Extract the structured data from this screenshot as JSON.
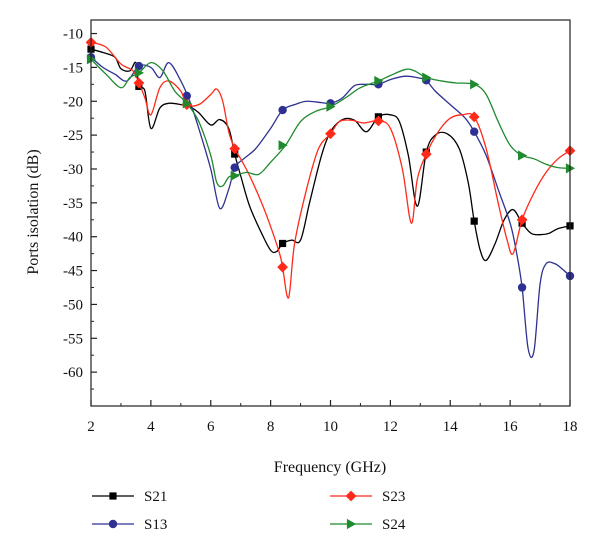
{
  "chart_data": {
    "type": "line",
    "title": "",
    "xlabel": "Frequency (GHz)",
    "ylabel": "Ports isolation (dB)",
    "xlim": [
      2,
      18
    ],
    "ylim": [
      -65,
      -8
    ],
    "xticks": [
      2,
      4,
      6,
      8,
      10,
      12,
      14,
      16,
      18
    ],
    "yticks": [
      -10,
      -15,
      -20,
      -25,
      -30,
      -35,
      -40,
      -45,
      -50,
      -55,
      -60
    ],
    "grid": false,
    "legend_position": "bottom",
    "series": [
      {
        "name": "S21",
        "color": "#000000",
        "marker": "square",
        "points": [
          [
            2,
            -12.3
          ],
          [
            2.4,
            -12.8
          ],
          [
            2.8,
            -13.5
          ],
          [
            3.0,
            -15.2
          ],
          [
            3.3,
            -15.5
          ],
          [
            3.5,
            -14.3
          ],
          [
            3.6,
            -17.8
          ],
          [
            3.8,
            -18.5
          ],
          [
            4.0,
            -24.0
          ],
          [
            4.3,
            -21.0
          ],
          [
            4.6,
            -20.3
          ],
          [
            5.0,
            -20.5
          ],
          [
            5.3,
            -20.8
          ],
          [
            5.6,
            -21.7
          ],
          [
            6.0,
            -23.5
          ],
          [
            6.3,
            -22.7
          ],
          [
            6.6,
            -24.0
          ],
          [
            6.8,
            -27.8
          ],
          [
            7.0,
            -31.0
          ],
          [
            7.3,
            -35.5
          ],
          [
            7.7,
            -39.5
          ],
          [
            8.0,
            -42.0
          ],
          [
            8.2,
            -42.2
          ],
          [
            8.4,
            -41.0
          ],
          [
            8.7,
            -40.5
          ],
          [
            9.0,
            -40.5
          ],
          [
            9.3,
            -35.0
          ],
          [
            9.7,
            -28.0
          ],
          [
            10.0,
            -24.5
          ],
          [
            10.4,
            -22.7
          ],
          [
            10.8,
            -22.8
          ],
          [
            11.2,
            -24.5
          ],
          [
            11.6,
            -22.3
          ],
          [
            12.0,
            -22.0
          ],
          [
            12.3,
            -23.0
          ],
          [
            12.6,
            -28.0
          ],
          [
            12.9,
            -35.5
          ],
          [
            13.2,
            -27.5
          ],
          [
            13.5,
            -25.0
          ],
          [
            13.9,
            -24.8
          ],
          [
            14.3,
            -27.0
          ],
          [
            14.6,
            -32.0
          ],
          [
            14.8,
            -37.7
          ],
          [
            15.0,
            -42.0
          ],
          [
            15.2,
            -43.5
          ],
          [
            15.5,
            -41.0
          ],
          [
            15.8,
            -37.5
          ],
          [
            16.1,
            -36.0
          ],
          [
            16.4,
            -38.0
          ],
          [
            16.7,
            -39.5
          ],
          [
            17.0,
            -39.7
          ],
          [
            17.3,
            -39.5
          ],
          [
            17.6,
            -38.8
          ],
          [
            18.0,
            -38.4
          ]
        ],
        "markers": [
          [
            2,
            -12.3
          ],
          [
            3.6,
            -17.8
          ],
          [
            6.8,
            -27.8
          ],
          [
            8.4,
            -41.0
          ],
          [
            11.6,
            -22.3
          ],
          [
            13.2,
            -27.5
          ],
          [
            14.8,
            -37.7
          ],
          [
            16.4,
            -38.0
          ],
          [
            18.0,
            -38.4
          ]
        ]
      },
      {
        "name": "S13",
        "color": "#2e3192",
        "marker": "circle",
        "points": [
          [
            2,
            -13.5
          ],
          [
            2.4,
            -15.0
          ],
          [
            2.8,
            -16.0
          ],
          [
            3.2,
            -17.0
          ],
          [
            3.6,
            -14.8
          ],
          [
            4.0,
            -15.0
          ],
          [
            4.3,
            -16.5
          ],
          [
            4.6,
            -14.3
          ],
          [
            5.0,
            -17.0
          ],
          [
            5.3,
            -20.0
          ],
          [
            5.6,
            -24.0
          ],
          [
            6.0,
            -30.0
          ],
          [
            6.3,
            -35.8
          ],
          [
            6.6,
            -33.0
          ],
          [
            6.8,
            -29.8
          ],
          [
            7.1,
            -28.5
          ],
          [
            7.5,
            -27.0
          ],
          [
            8.0,
            -24.0
          ],
          [
            8.4,
            -21.3
          ],
          [
            8.8,
            -20.5
          ],
          [
            9.2,
            -20.0
          ],
          [
            9.7,
            -20.2
          ],
          [
            10.0,
            -20.3
          ],
          [
            10.4,
            -19.5
          ],
          [
            10.8,
            -17.7
          ],
          [
            11.2,
            -17.5
          ],
          [
            11.6,
            -17.5
          ],
          [
            12.0,
            -16.8
          ],
          [
            12.5,
            -16.3
          ],
          [
            13.0,
            -16.6
          ],
          [
            13.2,
            -16.9
          ],
          [
            13.5,
            -18.5
          ],
          [
            14.0,
            -20.5
          ],
          [
            14.5,
            -22.5
          ],
          [
            14.8,
            -24.5
          ],
          [
            15.2,
            -28.0
          ],
          [
            15.6,
            -33.0
          ],
          [
            16.0,
            -38.0
          ],
          [
            16.2,
            -42.0
          ],
          [
            16.4,
            -47.5
          ],
          [
            16.6,
            -56.5
          ],
          [
            16.8,
            -56.8
          ],
          [
            17.0,
            -47.0
          ],
          [
            17.2,
            -44.0
          ],
          [
            17.5,
            -44.0
          ],
          [
            17.8,
            -45.0
          ],
          [
            18.0,
            -45.8
          ]
        ],
        "markers": [
          [
            2,
            -13.5
          ],
          [
            3.6,
            -14.8
          ],
          [
            5.2,
            -19.2
          ],
          [
            6.8,
            -29.8
          ],
          [
            8.4,
            -21.3
          ],
          [
            10.0,
            -20.3
          ],
          [
            11.6,
            -17.5
          ],
          [
            13.2,
            -16.9
          ],
          [
            14.8,
            -24.5
          ],
          [
            16.4,
            -47.5
          ],
          [
            18.0,
            -45.8
          ]
        ]
      },
      {
        "name": "S23",
        "color": "#ff2a1a",
        "marker": "diamond",
        "points": [
          [
            2,
            -11.3
          ],
          [
            2.5,
            -12.0
          ],
          [
            3.0,
            -14.5
          ],
          [
            3.4,
            -15.5
          ],
          [
            3.6,
            -17.3
          ],
          [
            3.8,
            -19.5
          ],
          [
            4.0,
            -22.0
          ],
          [
            4.3,
            -18.0
          ],
          [
            4.6,
            -17.0
          ],
          [
            5.0,
            -18.5
          ],
          [
            5.2,
            -20.5
          ],
          [
            5.6,
            -20.5
          ],
          [
            6.0,
            -19.0
          ],
          [
            6.2,
            -18.2
          ],
          [
            6.4,
            -20.0
          ],
          [
            6.6,
            -24.5
          ],
          [
            6.8,
            -27.0
          ],
          [
            7.0,
            -28.5
          ],
          [
            7.3,
            -31.0
          ],
          [
            7.7,
            -35.0
          ],
          [
            8.0,
            -38.5
          ],
          [
            8.3,
            -42.5
          ],
          [
            8.4,
            -44.5
          ],
          [
            8.6,
            -49.0
          ],
          [
            8.8,
            -41.0
          ],
          [
            9.2,
            -33.0
          ],
          [
            9.6,
            -27.0
          ],
          [
            10.0,
            -24.8
          ],
          [
            10.3,
            -23.0
          ],
          [
            10.7,
            -22.8
          ],
          [
            11.1,
            -23.2
          ],
          [
            11.6,
            -22.9
          ],
          [
            12.0,
            -24.0
          ],
          [
            12.4,
            -30.0
          ],
          [
            12.7,
            -38.0
          ],
          [
            12.9,
            -31.5
          ],
          [
            13.2,
            -27.8
          ],
          [
            13.6,
            -24.5
          ],
          [
            14.0,
            -22.5
          ],
          [
            14.4,
            -22.0
          ],
          [
            14.8,
            -22.3
          ],
          [
            15.2,
            -27.0
          ],
          [
            15.6,
            -35.0
          ],
          [
            15.9,
            -40.5
          ],
          [
            16.1,
            -42.5
          ],
          [
            16.4,
            -37.5
          ],
          [
            16.8,
            -33.5
          ],
          [
            17.2,
            -30.5
          ],
          [
            17.6,
            -28.5
          ],
          [
            18.0,
            -27.3
          ]
        ],
        "markers": [
          [
            2,
            -11.3
          ],
          [
            3.6,
            -17.3
          ],
          [
            5.2,
            -20.5
          ],
          [
            6.8,
            -27.0
          ],
          [
            8.4,
            -44.5
          ],
          [
            10.0,
            -24.8
          ],
          [
            11.6,
            -22.9
          ],
          [
            13.2,
            -27.8
          ],
          [
            14.8,
            -22.3
          ],
          [
            16.4,
            -37.5
          ],
          [
            18.0,
            -27.3
          ]
        ]
      },
      {
        "name": "S24",
        "color": "#1f8a2e",
        "marker": "triangle-right",
        "points": [
          [
            2,
            -13.8
          ],
          [
            2.5,
            -16.0
          ],
          [
            3.0,
            -18.0
          ],
          [
            3.3,
            -16.5
          ],
          [
            3.6,
            -15.8
          ],
          [
            4.0,
            -14.3
          ],
          [
            4.4,
            -15.5
          ],
          [
            4.8,
            -18.5
          ],
          [
            5.2,
            -20.3
          ],
          [
            5.6,
            -23.0
          ],
          [
            6.0,
            -28.0
          ],
          [
            6.2,
            -32.0
          ],
          [
            6.4,
            -32.5
          ],
          [
            6.6,
            -31.2
          ],
          [
            6.8,
            -31.0
          ],
          [
            7.2,
            -30.5
          ],
          [
            7.6,
            -30.8
          ],
          [
            8.0,
            -29.0
          ],
          [
            8.5,
            -26.5
          ],
          [
            9.0,
            -23.0
          ],
          [
            9.5,
            -21.5
          ],
          [
            10.0,
            -20.8
          ],
          [
            10.5,
            -19.5
          ],
          [
            11.0,
            -18.0
          ],
          [
            11.6,
            -17.0
          ],
          [
            12.0,
            -16.2
          ],
          [
            12.5,
            -15.3
          ],
          [
            12.8,
            -15.5
          ],
          [
            13.2,
            -16.5
          ],
          [
            13.7,
            -17.0
          ],
          [
            14.2,
            -17.3
          ],
          [
            14.8,
            -17.5
          ],
          [
            15.2,
            -19.0
          ],
          [
            15.6,
            -23.0
          ],
          [
            16.0,
            -26.5
          ],
          [
            16.4,
            -28.0
          ],
          [
            16.8,
            -28.5
          ],
          [
            17.2,
            -29.3
          ],
          [
            17.6,
            -29.8
          ],
          [
            18.0,
            -29.9
          ]
        ],
        "markers": [
          [
            2,
            -13.8
          ],
          [
            3.6,
            -15.8
          ],
          [
            5.2,
            -20.3
          ],
          [
            6.8,
            -31.0
          ],
          [
            8.4,
            -26.5
          ],
          [
            10.0,
            -20.8
          ],
          [
            11.6,
            -17.0
          ],
          [
            13.2,
            -16.5
          ],
          [
            14.8,
            -17.5
          ],
          [
            16.4,
            -28.0
          ],
          [
            18.0,
            -29.9
          ]
        ]
      }
    ]
  }
}
